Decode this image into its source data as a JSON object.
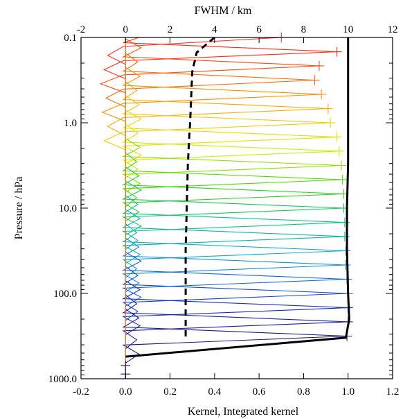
{
  "chart_data": {
    "type": "line",
    "title": "",
    "xlabel": "Kernel, Integrated kernel",
    "x2label": "FWHM / km",
    "ylabel": "Pressure / hPa",
    "xlim": [
      -0.2,
      1.2
    ],
    "x2lim": [
      -2,
      12
    ],
    "ylim": [
      1000.0,
      0.1
    ],
    "yscale": "log",
    "grid": false,
    "legend": "none",
    "x_ticks": [
      "-0.2",
      "0.0",
      "0.2",
      "0.4",
      "0.6",
      "0.8",
      "1.0",
      "1.2"
    ],
    "x2_ticks": [
      "-2",
      "0",
      "2",
      "4",
      "6",
      "8",
      "10",
      "12"
    ],
    "y_ticks": [
      "0.1",
      "1.0",
      "10.0",
      "100.0",
      "1000.0"
    ],
    "kernel_levels_hPa": [
      0.1,
      0.147,
      0.215,
      0.316,
      0.464,
      0.681,
      1.0,
      1.47,
      2.15,
      3.16,
      4.64,
      6.81,
      10.0,
      14.7,
      21.5,
      31.6,
      46.4,
      68.1,
      100.0,
      147,
      215,
      316
    ],
    "kernel_peaks": [
      0.7,
      0.95,
      0.87,
      0.85,
      0.88,
      0.91,
      0.92,
      0.95,
      0.96,
      0.97,
      0.975,
      0.98,
      0.98,
      0.985,
      0.985,
      0.99,
      0.99,
      0.995,
      1.0,
      1.0,
      1.0,
      0.995
    ],
    "kernel_colors": [
      "#ff3030",
      "#ff2d12",
      "#ff4a10",
      "#ff6a0a",
      "#ff8c00",
      "#ffaa00",
      "#f0c800",
      "#e4e000",
      "#c8f000",
      "#8ee000",
      "#4fd800",
      "#2cd02a",
      "#12c85a",
      "#12c088",
      "#10b4b0",
      "#10a8cc",
      "#128ad8",
      "#1268d8",
      "#1448cc",
      "#1a30b8",
      "#1a22a0",
      "#1a1a80"
    ],
    "integrated_kernel": {
      "p": [
        0.1,
        0.3,
        1.0,
        3.0,
        10.0,
        30.0,
        100.0,
        200.0,
        330.0,
        550.0
      ],
      "x": [
        1.0,
        1.0,
        1.0,
        1.0,
        0.995,
        0.995,
        1.0,
        1.005,
        0.99,
        0.0
      ]
    },
    "fwhm_km": {
      "p": [
        0.1,
        0.15,
        0.25,
        0.5,
        1.0,
        3.0,
        10.0,
        30.0,
        100.0,
        330.0
      ],
      "x": [
        4.0,
        3.2,
        3.0,
        2.95,
        2.9,
        2.8,
        2.75,
        2.7,
        2.7,
        2.7
      ]
    },
    "colors": {
      "integrated": "#000000",
      "fwhm": "#000000",
      "axes": "#000000"
    }
  }
}
